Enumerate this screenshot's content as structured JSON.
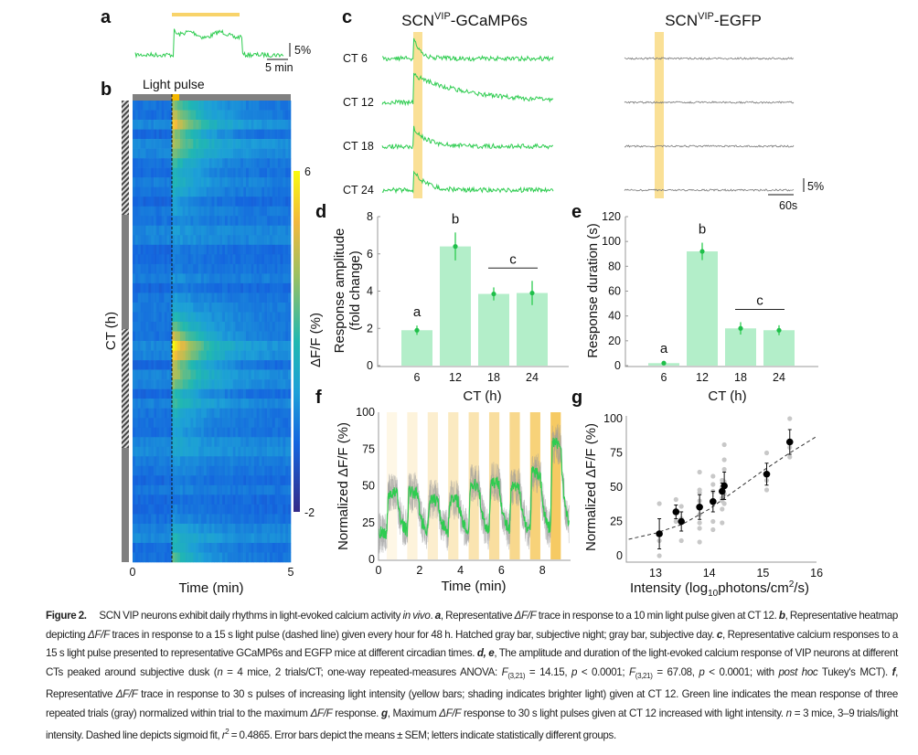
{
  "colors": {
    "green": "#2ecc50",
    "bar_fill": "#b3eec9",
    "pulse_yellow": "#f8d36a",
    "egfp_trace": "#777777",
    "hatch_gray": "#808080"
  },
  "panels": {
    "a": {
      "label": "a",
      "scale_y": "5%",
      "scale_x": "5 min",
      "stimulus": "10 min light pulse at CT 12"
    },
    "b": {
      "label": "b",
      "light_pulse_label": "Light pulse",
      "ylabel": "CT (h)",
      "xlabel": "Time (min)",
      "x_ticks": [
        "0",
        "5"
      ],
      "colorbar_label": "ΔF/F (%)",
      "colorbar_ticks": [
        "6",
        "-2"
      ],
      "colorbar_range": [
        -2,
        6
      ],
      "colormap": "parula",
      "row_peak_response": [
        3.5,
        4.5,
        4.8,
        4.0,
        3.6,
        3.0,
        2.5,
        2.0,
        1.8,
        1.5,
        1.2,
        1.0,
        0.6,
        0.5,
        0.4,
        0.5,
        0.4,
        0.3,
        0.5,
        0.6,
        0.8,
        1.2,
        2.0,
        3.0,
        4.5,
        5.6,
        5.2,
        4.4,
        3.8,
        3.0,
        2.5,
        2.2,
        1.8,
        1.5,
        1.2,
        1.0,
        0.8,
        0.6,
        0.5,
        0.6,
        0.4,
        0.3,
        0.5,
        0.7,
        0.9,
        1.5,
        2.2,
        2.8
      ]
    },
    "c": {
      "label": "c",
      "gcamp_title": {
        "pre": "SCN",
        "sup": "VIP",
        "post": "-GCaMP6s"
      },
      "egfp_title": {
        "pre": "SCN",
        "sup": "VIP",
        "post": "-EGFP"
      },
      "scale_y": "5%",
      "scale_x": "60s",
      "traces": [
        {
          "ct": "CT 6",
          "peak": 8,
          "decay_s": 15
        },
        {
          "ct": "CT 12",
          "peak": 8,
          "decay_s": 120
        },
        {
          "ct": "CT 18",
          "peak": 7,
          "decay_s": 30
        },
        {
          "ct": "CT 24",
          "peak": 7,
          "decay_s": 30
        }
      ]
    },
    "g_label": "g",
    "f_label": "f",
    "d_label": "d",
    "e_label": "e"
  },
  "chart_data": [
    {
      "id": "d",
      "type": "bar",
      "categories": [
        "6",
        "12",
        "18",
        "24"
      ],
      "values": [
        1.9,
        6.4,
        3.85,
        3.9
      ],
      "sem": [
        0.25,
        0.75,
        0.35,
        0.65
      ],
      "letters": [
        "a",
        "b",
        "c",
        "c"
      ],
      "c_bracket": [
        "18",
        "24"
      ],
      "ylabel_line1": "Response amplitude",
      "ylabel_line2": "(fold change)",
      "xlabel": "CT (h)",
      "ylim": [
        0,
        8
      ],
      "y_ticks": [
        "0",
        "2",
        "4",
        "6",
        "8"
      ]
    },
    {
      "id": "e",
      "type": "bar",
      "categories": [
        "6",
        "12",
        "18",
        "24"
      ],
      "values": [
        2,
        92,
        30,
        28.5
      ],
      "sem": [
        1,
        7,
        5,
        4
      ],
      "letters": [
        "a",
        "b",
        "c",
        "c"
      ],
      "c_bracket": [
        "18",
        "24"
      ],
      "ylabel": "Response duration (s)",
      "xlabel": "CT (h)",
      "ylim": [
        0,
        120
      ],
      "y_ticks": [
        "0",
        "20",
        "40",
        "60",
        "80",
        "100",
        "120"
      ]
    },
    {
      "id": "f",
      "type": "line",
      "ylabel": "Normalized ΔF/F (%)",
      "xlabel": "Time (min)",
      "xlim": [
        0,
        9.3
      ],
      "ylim": [
        0,
        100
      ],
      "x_ticks": [
        "0",
        "2",
        "4",
        "6",
        "8"
      ],
      "y_ticks": [
        "0",
        "25",
        "50",
        "75",
        "100"
      ],
      "pulses": [
        {
          "start": 0.4,
          "end": 0.9,
          "intensity": 0.08
        },
        {
          "start": 1.4,
          "end": 1.9,
          "intensity": 0.14
        },
        {
          "start": 2.4,
          "end": 2.9,
          "intensity": 0.22
        },
        {
          "start": 3.4,
          "end": 3.9,
          "intensity": 0.3
        },
        {
          "start": 4.4,
          "end": 4.9,
          "intensity": 0.4
        },
        {
          "start": 5.4,
          "end": 5.9,
          "intensity": 0.5
        },
        {
          "start": 6.4,
          "end": 6.9,
          "intensity": 0.6
        },
        {
          "start": 7.4,
          "end": 7.9,
          "intensity": 0.72
        },
        {
          "start": 8.4,
          "end": 8.9,
          "intensity": 0.85
        }
      ],
      "baseline": 18,
      "pulse_peaks": [
        45,
        45,
        40,
        40,
        50,
        52,
        48,
        58,
        78
      ]
    },
    {
      "id": "g",
      "type": "scatter",
      "ylabel": "Normalized ΔF/F (%)",
      "xlabel_pre": "Intensity (log",
      "xlabel_sub": "10",
      "xlabel_mid": "photons/cm",
      "xlabel_sup": "2",
      "xlabel_post": "/s)",
      "xlim": [
        12.5,
        16
      ],
      "ylim": [
        -5,
        105
      ],
      "x_ticks": [
        "13",
        "14",
        "15",
        "16"
      ],
      "y_ticks": [
        "0",
        "25",
        "50",
        "75",
        "100"
      ],
      "means": [
        {
          "x": 13.07,
          "y": 16,
          "sem": 11
        },
        {
          "x": 13.38,
          "y": 32,
          "sem": 5
        },
        {
          "x": 13.48,
          "y": 25,
          "sem": 7
        },
        {
          "x": 13.82,
          "y": 35.5,
          "sem": 9
        },
        {
          "x": 14.07,
          "y": 39.5,
          "sem": 7.5
        },
        {
          "x": 14.24,
          "y": 47,
          "sem": 6
        },
        {
          "x": 14.28,
          "y": 51,
          "sem": 10
        },
        {
          "x": 15.07,
          "y": 59.5,
          "sem": 8
        },
        {
          "x": 15.5,
          "y": 83,
          "sem": 9
        }
      ],
      "trials": [
        [
          13.07,
          0
        ],
        [
          13.07,
          11
        ],
        [
          13.07,
          38
        ],
        [
          13.38,
          25
        ],
        [
          13.38,
          33
        ],
        [
          13.38,
          41
        ],
        [
          13.48,
          11
        ],
        [
          13.48,
          27
        ],
        [
          13.48,
          36
        ],
        [
          13.82,
          10
        ],
        [
          13.82,
          20
        ],
        [
          13.82,
          24
        ],
        [
          13.82,
          30
        ],
        [
          13.82,
          40
        ],
        [
          13.82,
          46
        ],
        [
          13.82,
          48
        ],
        [
          13.82,
          61
        ],
        [
          14.07,
          19
        ],
        [
          14.07,
          25
        ],
        [
          14.07,
          40
        ],
        [
          14.07,
          47
        ],
        [
          14.07,
          52
        ],
        [
          14.07,
          58
        ],
        [
          14.24,
          24
        ],
        [
          14.24,
          34
        ],
        [
          14.24,
          40
        ],
        [
          14.24,
          42
        ],
        [
          14.24,
          50
        ],
        [
          14.24,
          55
        ],
        [
          14.28,
          38
        ],
        [
          14.28,
          45
        ],
        [
          14.28,
          54
        ],
        [
          14.28,
          63
        ],
        [
          14.28,
          70
        ],
        [
          14.28,
          81
        ],
        [
          15.07,
          48
        ],
        [
          15.07,
          55
        ],
        [
          15.07,
          75
        ],
        [
          15.5,
          72
        ],
        [
          15.5,
          79
        ],
        [
          15.5,
          100
        ]
      ],
      "fit": {
        "type": "sigmoid",
        "r2": 0.4865,
        "points": [
          [
            12.5,
            12
          ],
          [
            13,
            16.5
          ],
          [
            13.5,
            23
          ],
          [
            14,
            34
          ],
          [
            14.5,
            48
          ],
          [
            15,
            62
          ],
          [
            15.5,
            75
          ],
          [
            16,
            87
          ]
        ]
      }
    }
  ],
  "caption": {
    "segments": [
      {
        "s": "b",
        "t": "Figure 2."
      },
      {
        "s": "n",
        "t": "  SCN VIP neurons exhibit daily rhythms in light-evoked calcium activity "
      },
      {
        "s": "i",
        "t": "in vivo"
      },
      {
        "s": "n",
        "t": ". "
      },
      {
        "s": "bi",
        "t": "a"
      },
      {
        "s": "n",
        "t": ", Representative "
      },
      {
        "s": "i",
        "t": "ΔF/F"
      },
      {
        "s": "n",
        "t": " trace in response to a 10 min light pulse given at CT 12. "
      },
      {
        "s": "bi",
        "t": "b"
      },
      {
        "s": "n",
        "t": ", Representative heatmap depicting "
      },
      {
        "s": "i",
        "t": "ΔF/F"
      },
      {
        "s": "n",
        "t": " traces in response to a 15 s light pulse (dashed line) given every hour for 48 h. Hatched gray bar, subjective night; gray bar, subjective day. "
      },
      {
        "s": "bi",
        "t": "c"
      },
      {
        "s": "n",
        "t": ", Representative calcium responses to a 15 s light pulse presented to representative GCaMP6s and EGFP mice at different circadian times. "
      },
      {
        "s": "bi",
        "t": "d, e"
      },
      {
        "s": "n",
        "t": ", The amplitude and duration of the light-evoked calcium response of VIP neurons at different CTs peaked around subjective dusk ("
      },
      {
        "s": "i",
        "t": "n"
      },
      {
        "s": "n",
        "t": " = 4 mice, 2 trials/CT; one-way repeated-measures ANOVA: "
      },
      {
        "s": "i",
        "t": "F"
      },
      {
        "s": "sub",
        "t": "(3,21)"
      },
      {
        "s": "n",
        "t": " = 14.15, "
      },
      {
        "s": "i",
        "t": "p"
      },
      {
        "s": "n",
        "t": " < 0.0001; "
      },
      {
        "s": "i",
        "t": "F"
      },
      {
        "s": "sub",
        "t": "(3,21)"
      },
      {
        "s": "n",
        "t": " = 67.08, "
      },
      {
        "s": "i",
        "t": "p"
      },
      {
        "s": "n",
        "t": " < 0.0001; with "
      },
      {
        "s": "i",
        "t": "post hoc"
      },
      {
        "s": "n",
        "t": " Tukey's MCT). "
      },
      {
        "s": "bi",
        "t": "f"
      },
      {
        "s": "n",
        "t": ", Representative "
      },
      {
        "s": "i",
        "t": "ΔF/F"
      },
      {
        "s": "n",
        "t": " trace in response to 30 s pulses of increasing light intensity (yellow bars; shading indicates brighter light) given at CT 12. Green line indicates the mean response of three repeated trials (gray) normalized within trial to the maximum "
      },
      {
        "s": "i",
        "t": "ΔF/F"
      },
      {
        "s": "n",
        "t": " response. "
      },
      {
        "s": "bi",
        "t": "g"
      },
      {
        "s": "n",
        "t": ", Maximum "
      },
      {
        "s": "i",
        "t": "ΔF/F"
      },
      {
        "s": "n",
        "t": " response to 30 s light pulses given at CT 12 increased with light intensity. "
      },
      {
        "s": "i",
        "t": "n"
      },
      {
        "s": "n",
        "t": " = 3 mice, 3–9 trials/light intensity. Dashed line depicts sigmoid fit, "
      },
      {
        "s": "i",
        "t": "r"
      },
      {
        "s": "sup",
        "t": "2"
      },
      {
        "s": "n",
        "t": " = 0.4865. Error bars depict the means ± SEM; letters indicate statistically different groups."
      }
    ]
  }
}
